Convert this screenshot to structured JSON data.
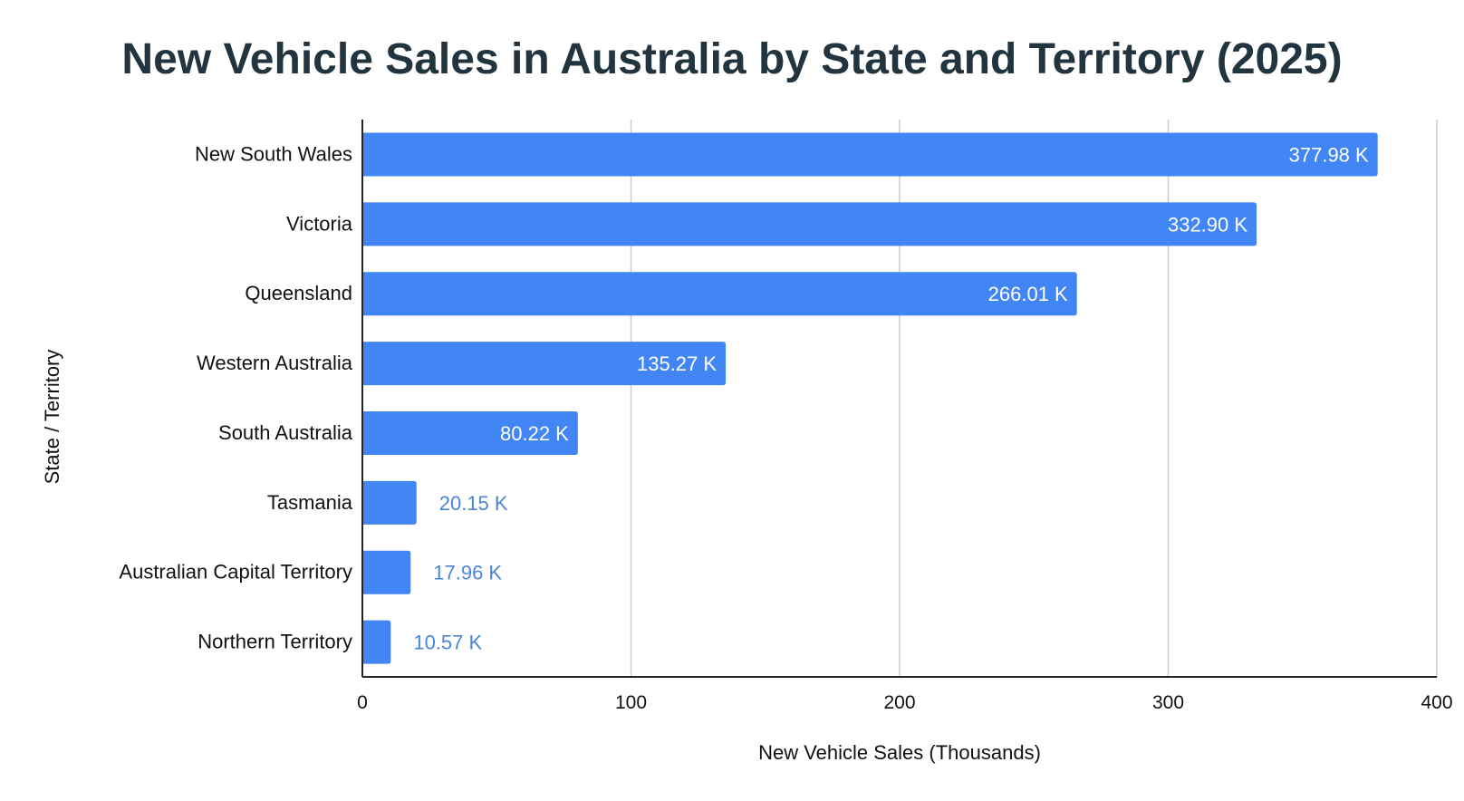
{
  "chart_data": {
    "type": "bar",
    "orientation": "horizontal",
    "title": "New Vehicle Sales in Australia by State and Territory (2025)",
    "xlabel": "New Vehicle Sales (Thousands)",
    "ylabel": "State / Territory",
    "categories": [
      "New South Wales",
      "Victoria",
      "Queensland",
      "Western Australia",
      "South Australia",
      "Tasmania",
      "Australian Capital Territory",
      "Northern Territory"
    ],
    "values": [
      377.98,
      332.9,
      266.01,
      135.27,
      80.22,
      20.15,
      17.96,
      10.57
    ],
    "data_labels": [
      "377.98 K",
      "332.90 K",
      "266.01 K",
      "135.27 K",
      "80.22 K",
      "20.15 K",
      "17.96 K",
      "10.57 K"
    ],
    "xlim": [
      0,
      400
    ],
    "xticks": [
      "0",
      "100",
      "200",
      "300",
      "400"
    ],
    "grid": "vertical",
    "legend": "none",
    "colors": {
      "bar": "#4285f4",
      "label_inside": "#ffffff",
      "label_outside": "#4a86d8",
      "title": "#22343f",
      "grid": "#cccccc",
      "axis": "#222222"
    }
  }
}
